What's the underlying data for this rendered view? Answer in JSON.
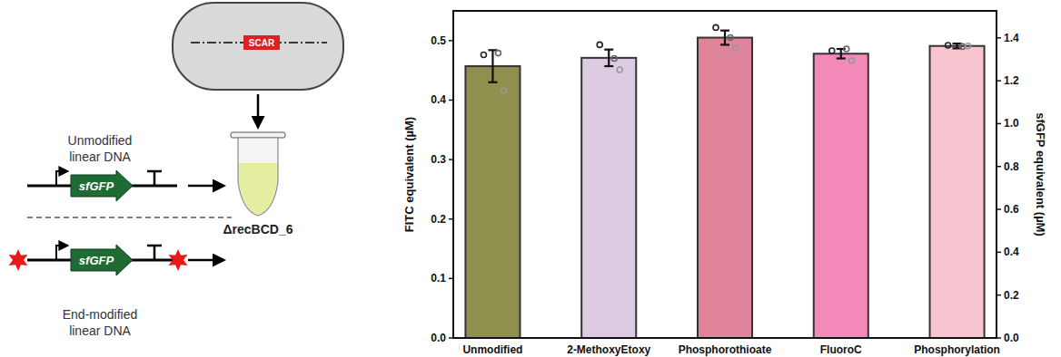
{
  "chart_data": {
    "type": "bar",
    "y_label": "FITC equivalent (µM)",
    "y2_label": "sfGFP equivalent (µM)",
    "categories": [
      "Unmodified",
      "2-MethoxyEtoxy",
      "Phosphorothioate",
      "FluoroC",
      "Phosphorylation"
    ],
    "values": [
      0.457,
      0.471,
      0.505,
      0.478,
      0.491
    ],
    "errors": [
      0.027,
      0.014,
      0.012,
      0.008,
      0.004
    ],
    "points": [
      [
        0.476,
        0.479,
        0.416
      ],
      [
        0.493,
        0.47,
        0.451
      ],
      [
        0.522,
        0.505,
        0.487
      ],
      [
        0.483,
        0.486,
        0.466
      ],
      [
        0.492,
        0.49,
        0.491
      ]
    ],
    "colors": [
      "#8f8f4e",
      "#dccbe2",
      "#e0849c",
      "#f289b8",
      "#f8c4cf"
    ],
    "ylim": [
      0,
      0.55
    ],
    "yticks": [
      {
        "value": 0,
        "label": "0.0"
      },
      0.1,
      0.2,
      0.3,
      0.4,
      0.5
    ],
    "y2lim": [
      0,
      1.526
    ],
    "y2ticks": [
      {
        "value": 0,
        "label": "0.0"
      },
      0.2,
      0.4,
      0.6,
      0.8,
      {
        "value": 1,
        "label": "1.0"
      },
      1.2,
      1.4
    ],
    "grid": false
  },
  "diagram": {
    "scar_label": "SCAR",
    "gene_label": "sfGFP",
    "unmodified_label": "Unmodified linear DNA",
    "modified_label": "End-modified linear DNA",
    "strain_label": "ΔrecBCD_6"
  }
}
